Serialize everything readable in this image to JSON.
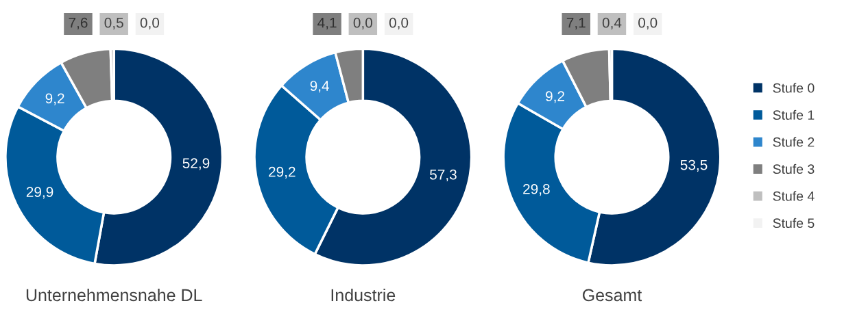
{
  "chart_data": [
    {
      "type": "donut",
      "title": "Unternehmensnahe DL",
      "categories": [
        null,
        null,
        null,
        null,
        null,
        null
      ],
      "values": [
        52.9,
        29.9,
        9.2,
        7.6,
        0.5,
        0.0
      ],
      "colors": [
        "#003366",
        "#005a9a",
        "#2e86cd",
        "#7f7f7f",
        "#bfbfbf",
        "#f2f2f2"
      ],
      "value_labels": [
        "52,9",
        "29,9",
        "9,2",
        "7,6",
        "0,5",
        "0,0"
      ]
    },
    {
      "type": "donut",
      "title": "Industrie",
      "categories": [
        null,
        null,
        null,
        null,
        null,
        null
      ],
      "values": [
        57.3,
        29.2,
        9.4,
        4.1,
        0.0,
        0.0
      ],
      "colors": [
        "#003366",
        "#005a9a",
        "#2e86cd",
        "#7f7f7f",
        "#bfbfbf",
        "#f2f2f2"
      ],
      "value_labels": [
        "57,3",
        "29,2",
        "9,4",
        "4,1",
        "0,0",
        "0,0"
      ]
    },
    {
      "type": "donut",
      "title": "Gesamt",
      "categories": [
        "Stufe 0",
        "Stufe 1",
        "Stufe 2",
        "Stufe 3",
        "Stufe 4",
        "Stufe 5"
      ],
      "values": [
        53.5,
        29.8,
        9.2,
        7.1,
        0.4,
        0.0
      ],
      "colors": [
        "#003366",
        "#005a9a",
        "#2e86cd",
        "#7f7f7f",
        "#bfbfbf",
        "#f2f2f2"
      ],
      "value_labels": [
        "53,5",
        "29,8",
        "9,2",
        "7,1",
        "0,4",
        "0,0"
      ],
      "legend": "right"
    }
  ]
}
